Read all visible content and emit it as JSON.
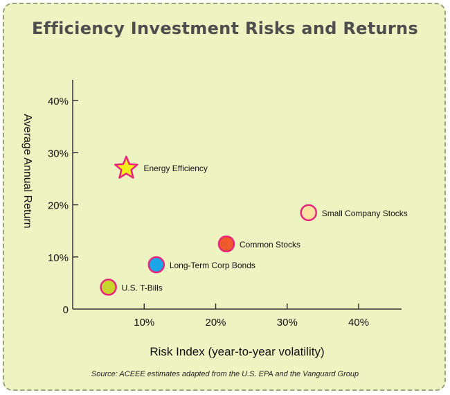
{
  "chart_data": {
    "type": "scatter",
    "title": "Efficiency Investment Risks and Returns",
    "xlabel": "Risk Index (year-to-year volatility)",
    "ylabel": "Average Annual Return",
    "source": "Source: ACEEE estimates adapted from the U.S. EPA and the Vanguard Group",
    "xlim": [
      0,
      46
    ],
    "ylim": [
      0,
      44
    ],
    "x_ticks": [
      10,
      20,
      30,
      40
    ],
    "x_tick_labels": [
      "10%",
      "20%",
      "30%",
      "40%"
    ],
    "y_ticks": [
      0,
      10,
      20,
      30,
      40
    ],
    "y_tick_labels": [
      "0",
      "10%",
      "20%",
      "30%",
      "40%"
    ],
    "grid": false,
    "points": [
      {
        "label": "Energy Efficiency",
        "x": 7.5,
        "y": 27,
        "marker": "star",
        "fill": "#f4ee1a"
      },
      {
        "label": "Small Company Stocks",
        "x": 33,
        "y": 18.5,
        "marker": "circle",
        "fill": "#fbe3a0"
      },
      {
        "label": "Common Stocks",
        "x": 21.5,
        "y": 12.5,
        "marker": "circle",
        "fill": "#ee5a2c"
      },
      {
        "label": "Long-Term Corp Bonds",
        "x": 11.7,
        "y": 8.5,
        "marker": "circle",
        "fill": "#1ba6e8"
      },
      {
        "label": "U.S. T-Bills",
        "x": 5,
        "y": 4.2,
        "marker": "circle",
        "fill": "#c8d62c"
      }
    ],
    "marker_outline": "#e8247b"
  }
}
